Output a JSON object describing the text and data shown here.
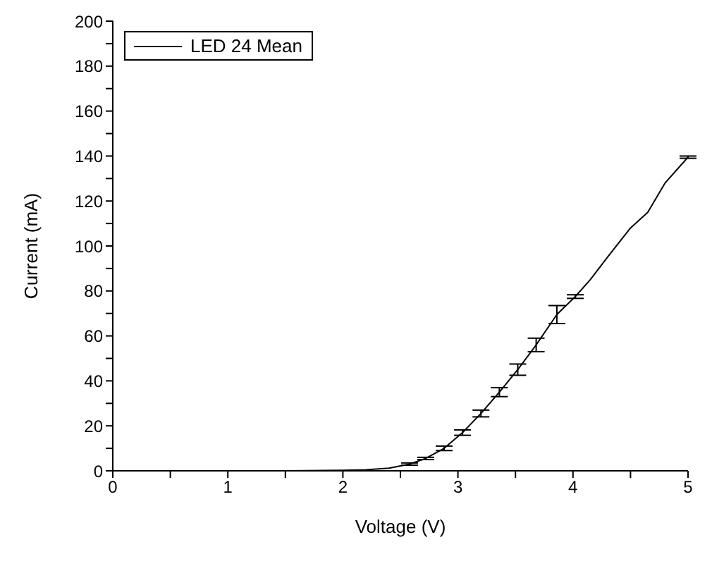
{
  "chart_data": {
    "type": "line",
    "xlabel": "Voltage (V)",
    "ylabel": "Current (mA)",
    "x": [
      0,
      0.5,
      1,
      1.5,
      2,
      2.2,
      2.4,
      2.58,
      2.72,
      2.88,
      3.04,
      3.2,
      3.36,
      3.52,
      3.68,
      3.86,
      4.02,
      4.15,
      4.3,
      4.5,
      4.65,
      4.8,
      5
    ],
    "series": [
      {
        "name": "LED 24 Mean",
        "color": "#000000",
        "values": [
          0,
          0,
          0,
          0,
          0.2,
          0.5,
          1.2,
          3,
          5.5,
          10,
          17,
          25.5,
          35,
          45,
          56,
          69.5,
          77.5,
          85,
          95,
          108,
          115,
          128,
          139.5
        ],
        "errors": [
          null,
          null,
          null,
          null,
          null,
          null,
          null,
          0.5,
          0.5,
          1,
          1.2,
          1.5,
          2,
          2.5,
          3,
          4,
          0.8,
          null,
          null,
          null,
          null,
          null,
          0.5
        ]
      }
    ],
    "xlim": [
      0,
      5
    ],
    "xticks": [
      0,
      {
        "value": 0.5,
        "label": null
      },
      1,
      {
        "value": 1.5,
        "label": null
      },
      2,
      {
        "value": 2.5,
        "label": null
      },
      3,
      {
        "value": 3.5,
        "label": null
      },
      4,
      {
        "value": 4.5,
        "label": null
      },
      5
    ],
    "ylim": [
      0,
      200
    ],
    "yticks": [
      0,
      {
        "value": 10,
        "label": null
      },
      20,
      {
        "value": 30,
        "label": null
      },
      40,
      {
        "value": 50,
        "label": null
      },
      60,
      {
        "value": 70,
        "label": null
      },
      80,
      {
        "value": 90,
        "label": null
      },
      100,
      {
        "value": 110,
        "label": null
      },
      120,
      {
        "value": 130,
        "label": null
      },
      140,
      {
        "value": 150,
        "label": null
      },
      160,
      {
        "value": 170,
        "label": null
      },
      180,
      {
        "value": 190,
        "label": null
      },
      200
    ],
    "legend": "top left",
    "grid": false,
    "marker": "none",
    "line_style": "solid"
  }
}
